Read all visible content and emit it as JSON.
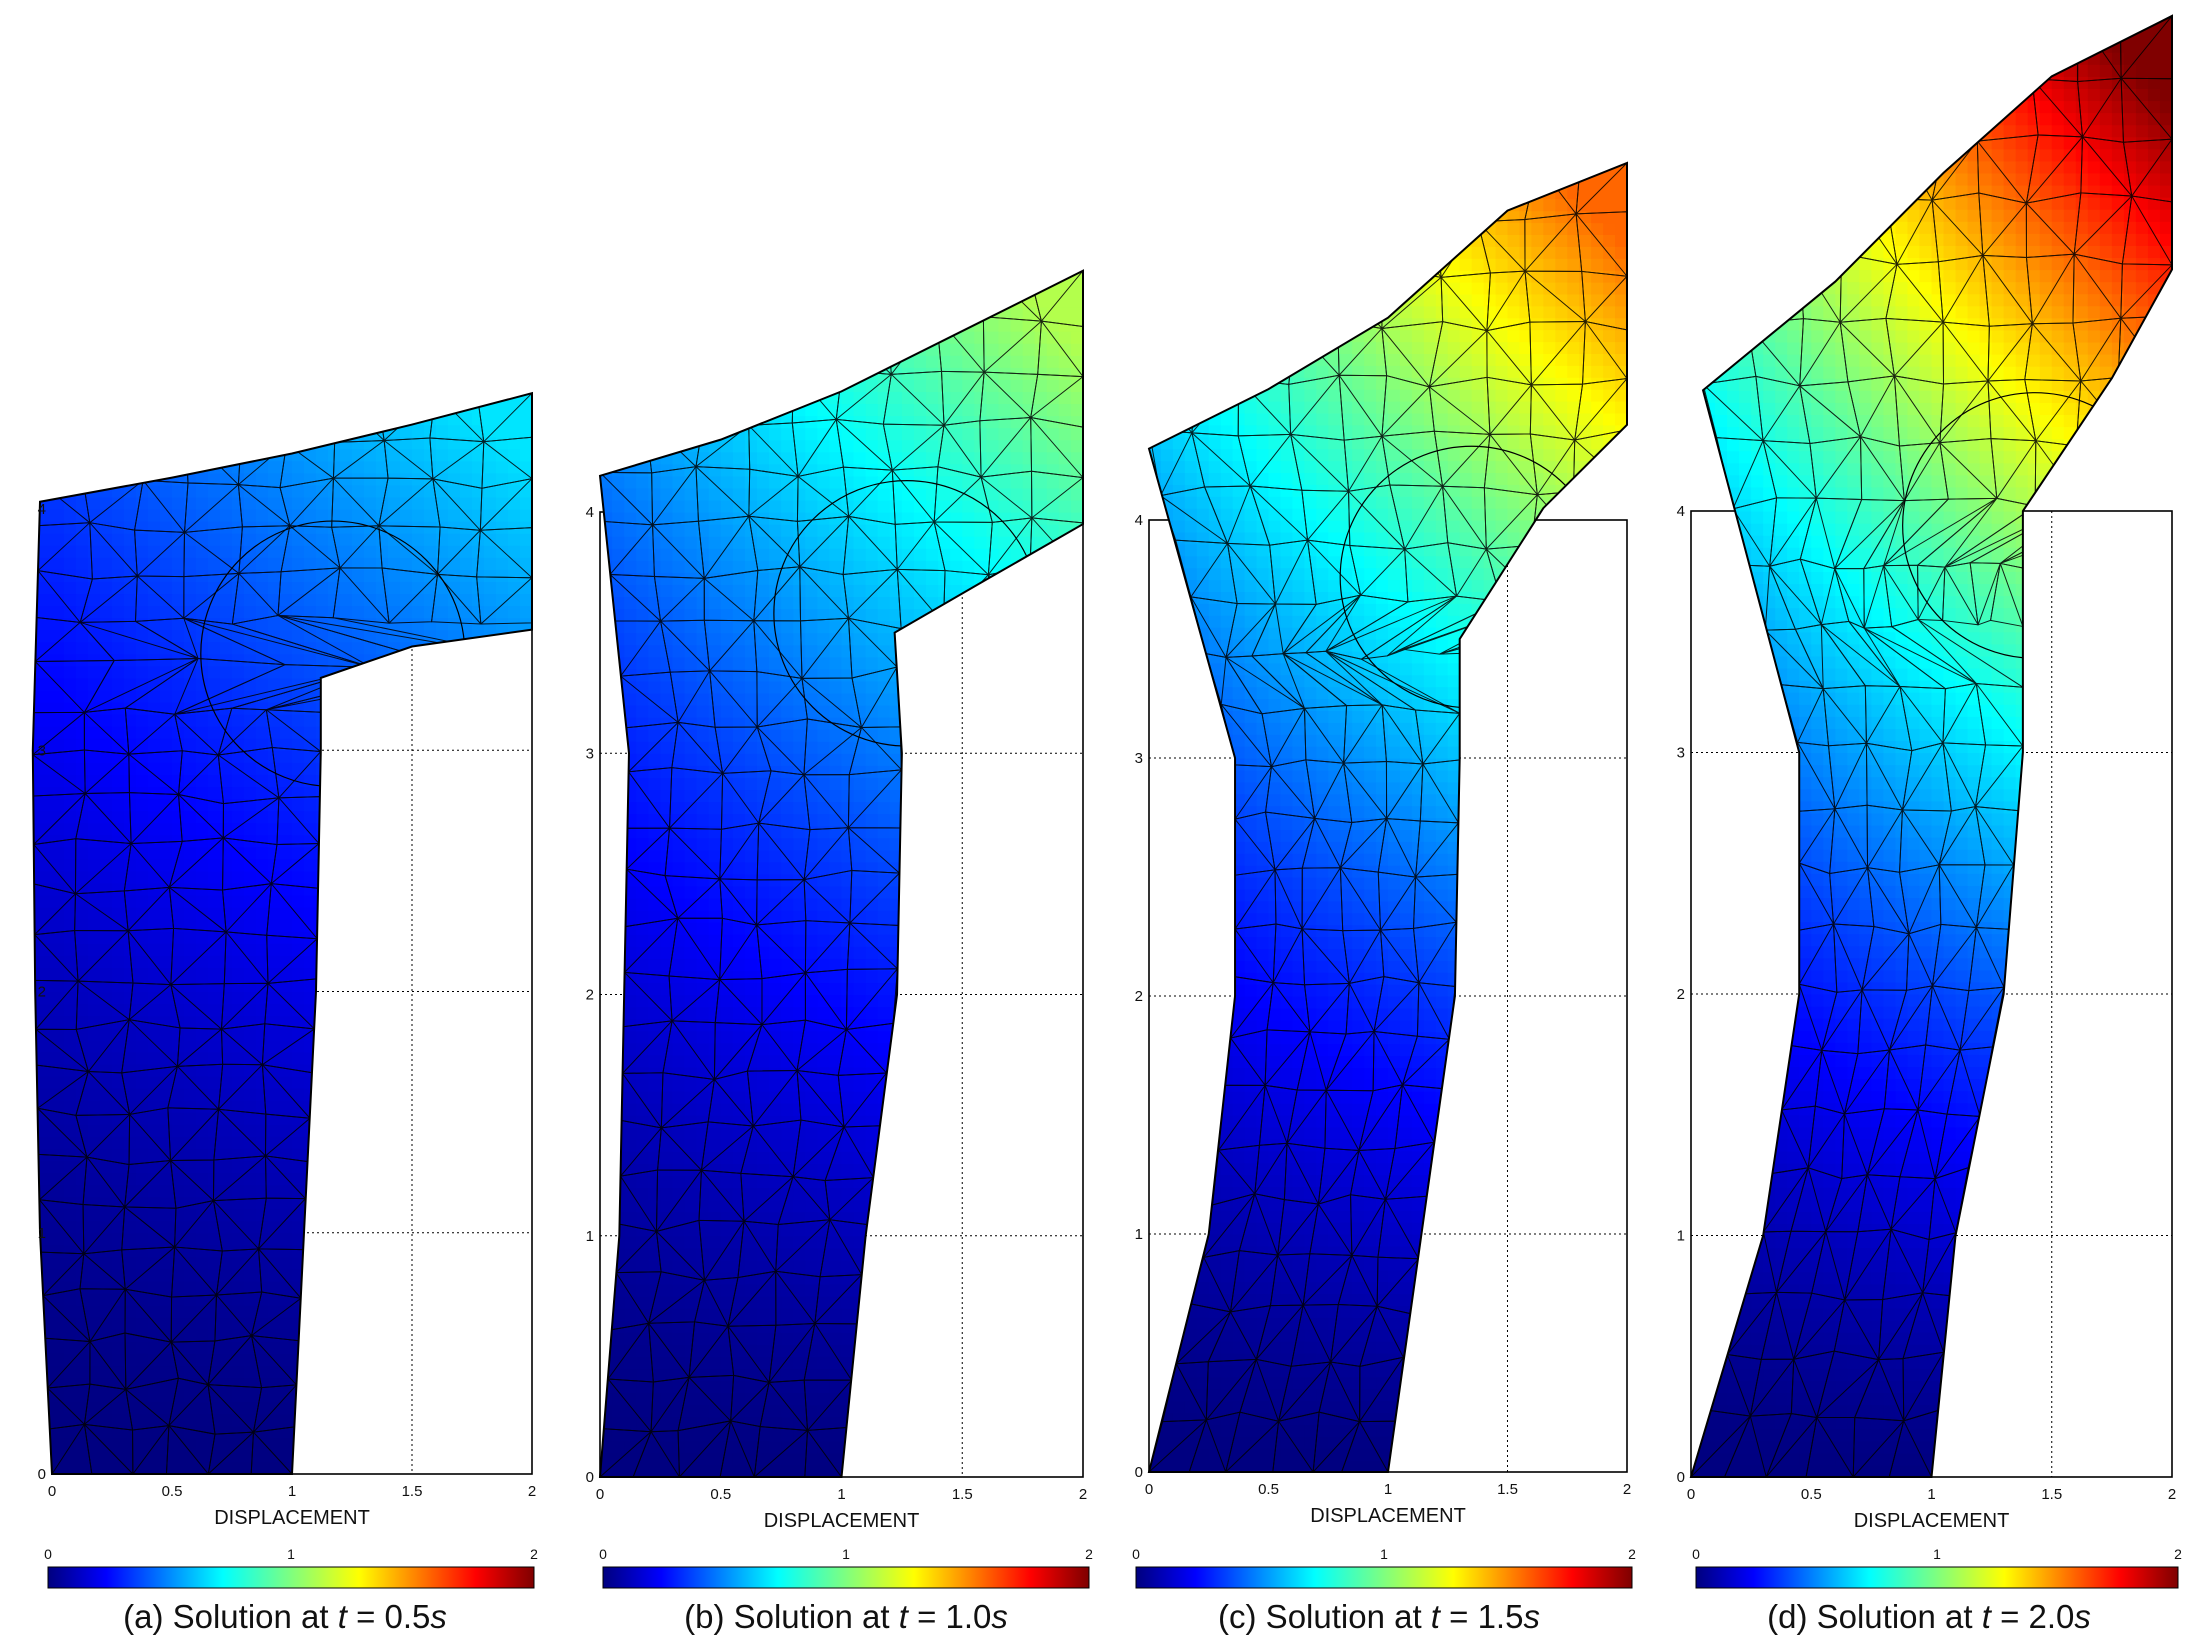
{
  "chart_data": [
    {
      "type": "contour-mesh",
      "caption": {
        "prefix": "(a) Solution at ",
        "var": "t",
        "eq": " = 0.5",
        "unit": "s"
      },
      "xlabel": "DISPLACEMENT",
      "xlim": [
        0,
        2
      ],
      "ylim": [
        0,
        4
      ],
      "x_ticks": [
        "0",
        "0.5",
        "1",
        "1.5",
        "2"
      ],
      "y_ticks": [
        "0",
        "1",
        "2",
        "3",
        "4"
      ],
      "colorbar": {
        "min": 0,
        "max": 2,
        "ticks": [
          "0",
          "1",
          "2"
        ]
      },
      "time": 0.5,
      "max_displacement": 0.7,
      "outline": {
        "left": [
          [
            0,
            0
          ],
          [
            -0.05,
            1
          ],
          [
            -0.07,
            2
          ],
          [
            -0.08,
            3
          ],
          [
            -0.05,
            4.03
          ]
        ],
        "right": [
          [
            1,
            0
          ],
          [
            1.05,
            1
          ],
          [
            1.1,
            2
          ],
          [
            1.12,
            3
          ],
          [
            1.12,
            3.3
          ]
        ],
        "top": [
          [
            -0.05,
            4.03
          ],
          [
            0.5,
            4.13
          ],
          [
            1.0,
            4.23
          ],
          [
            1.5,
            4.35
          ],
          [
            2,
            4.48
          ]
        ],
        "bottom_edge": [
          [
            1.12,
            3.3
          ],
          [
            1.5,
            3.43
          ],
          [
            2,
            3.5
          ]
        ],
        "tip": [
          [
            2,
            3.5
          ],
          [
            2,
            4.48
          ]
        ]
      }
    },
    {
      "type": "contour-mesh",
      "caption": {
        "prefix": "(b) Solution at ",
        "var": "t",
        "eq": " = 1.0",
        "unit": "s"
      },
      "xlabel": "DISPLACEMENT",
      "xlim": [
        0,
        2
      ],
      "ylim": [
        0,
        4
      ],
      "x_ticks": [
        "0",
        "0.5",
        "1",
        "1.5",
        "2"
      ],
      "y_ticks": [
        "0",
        "1",
        "2",
        "3",
        "4"
      ],
      "colorbar": {
        "min": 0,
        "max": 2,
        "ticks": [
          "0",
          "1",
          "2"
        ]
      },
      "time": 1.0,
      "max_displacement": 1.1,
      "outline": {
        "left": [
          [
            0,
            0
          ],
          [
            0.08,
            1
          ],
          [
            0.1,
            2
          ],
          [
            0.12,
            3
          ],
          [
            0.0,
            4.15
          ]
        ],
        "right": [
          [
            1,
            0
          ],
          [
            1.1,
            1
          ],
          [
            1.23,
            2
          ],
          [
            1.25,
            3
          ],
          [
            1.22,
            3.5
          ]
        ],
        "top": [
          [
            0.0,
            4.15
          ],
          [
            0.5,
            4.3
          ],
          [
            1.0,
            4.5
          ],
          [
            1.5,
            4.75
          ],
          [
            2,
            5.0
          ]
        ],
        "bottom_edge": [
          [
            1.22,
            3.5
          ],
          [
            1.6,
            3.72
          ],
          [
            2,
            3.95
          ]
        ],
        "tip": [
          [
            2,
            3.95
          ],
          [
            2,
            5.0
          ]
        ]
      }
    },
    {
      "type": "contour-mesh",
      "caption": {
        "prefix": "(c) Solution at ",
        "var": "t",
        "eq": " = 1.5",
        "unit": "s"
      },
      "xlabel": "DISPLACEMENT",
      "xlim": [
        0,
        2
      ],
      "ylim": [
        0,
        4
      ],
      "x_ticks": [
        "0",
        "0.5",
        "1",
        "1.5",
        "2"
      ],
      "y_ticks": [
        "0",
        "1",
        "2",
        "3",
        "4"
      ],
      "colorbar": {
        "min": 0,
        "max": 2,
        "ticks": [
          "0",
          "1",
          "2"
        ]
      },
      "time": 1.5,
      "max_displacement": 1.55,
      "outline": {
        "left": [
          [
            0,
            0
          ],
          [
            0.25,
            1
          ],
          [
            0.36,
            2
          ],
          [
            0.36,
            3
          ],
          [
            0.0,
            4.3
          ]
        ],
        "right": [
          [
            1,
            0
          ],
          [
            1.14,
            1
          ],
          [
            1.28,
            2
          ],
          [
            1.3,
            3
          ],
          [
            1.3,
            3.5
          ]
        ],
        "top": [
          [
            0.0,
            4.3
          ],
          [
            0.5,
            4.55
          ],
          [
            1.0,
            4.85
          ],
          [
            1.5,
            5.3
          ],
          [
            2,
            5.5
          ]
        ],
        "bottom_edge": [
          [
            1.3,
            3.5
          ],
          [
            1.65,
            4.05
          ],
          [
            2,
            4.4
          ]
        ],
        "tip": [
          [
            2,
            4.4
          ],
          [
            2,
            5.5
          ]
        ]
      }
    },
    {
      "type": "contour-mesh",
      "caption": {
        "prefix": "(d) Solution at ",
        "var": "t",
        "eq": " = 2.0",
        "unit": "s"
      },
      "xlabel": "DISPLACEMENT",
      "xlim": [
        0,
        2
      ],
      "ylim": [
        0,
        4
      ],
      "x_ticks": [
        "0",
        "0.5",
        "1",
        "1.5",
        "2"
      ],
      "y_ticks": [
        "0",
        "1",
        "2",
        "3",
        "4"
      ],
      "colorbar": {
        "min": 0,
        "max": 2,
        "ticks": [
          "0",
          "1",
          "2"
        ]
      },
      "time": 2.0,
      "max_displacement": 2.0,
      "outline": {
        "left": [
          [
            0,
            0
          ],
          [
            0.3,
            1
          ],
          [
            0.45,
            2
          ],
          [
            0.45,
            3
          ],
          [
            0.05,
            4.5
          ]
        ],
        "right": [
          [
            1,
            0
          ],
          [
            1.1,
            1
          ],
          [
            1.3,
            2
          ],
          [
            1.38,
            3
          ],
          [
            1.38,
            4.0
          ]
        ],
        "top": [
          [
            0.05,
            4.5
          ],
          [
            0.6,
            4.95
          ],
          [
            1.05,
            5.4
          ],
          [
            1.5,
            5.8
          ],
          [
            2,
            6.05
          ]
        ],
        "bottom_edge": [
          [
            1.38,
            4.0
          ],
          [
            1.75,
            4.55
          ],
          [
            2,
            5.0
          ]
        ],
        "tip": [
          [
            2,
            5.0
          ],
          [
            2,
            6.05
          ]
        ]
      }
    }
  ]
}
